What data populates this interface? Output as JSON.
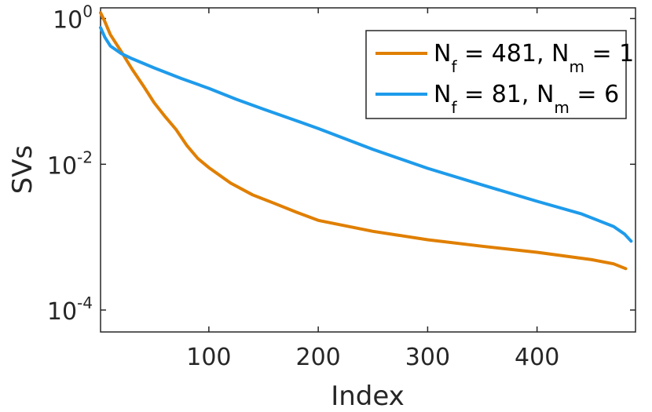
{
  "chart_data": {
    "type": "line",
    "xlabel": "Index",
    "ylabel": "SVs",
    "xlim": [
      1,
      490
    ],
    "ylim": [
      5e-05,
      1.4
    ],
    "y_scale": "log",
    "x_ticks": [
      100,
      200,
      300,
      400
    ],
    "x_tick_labels": [
      "100",
      "200",
      "300",
      "400"
    ],
    "y_ticks": [
      0.0001,
      0.01,
      1
    ],
    "y_tick_labels": [
      {
        "base": "10",
        "exp": "-4"
      },
      {
        "base": "10",
        "exp": "-2"
      },
      {
        "base": "10",
        "exp": "0"
      }
    ],
    "grid": false,
    "legend_position": "top-right",
    "series": [
      {
        "color": "#E07F00",
        "legend": {
          "parts": [
            {
              "t": "N"
            },
            {
              "t": "f",
              "sub": true
            },
            {
              "t": " = 481, N"
            },
            {
              "t": "m",
              "sub": true
            },
            {
              "t": " = 1"
            }
          ]
        },
        "x": [
          1,
          5,
          10,
          20,
          30,
          40,
          50,
          60,
          70,
          80,
          90,
          100,
          120,
          140,
          160,
          180,
          200,
          250,
          300,
          350,
          400,
          450,
          470,
          481
        ],
        "y": [
          1.2,
          0.9,
          0.6,
          0.35,
          0.2,
          0.12,
          0.07,
          0.045,
          0.03,
          0.018,
          0.012,
          0.009,
          0.0055,
          0.0038,
          0.0029,
          0.0022,
          0.0017,
          0.0012,
          0.00092,
          0.00075,
          0.00062,
          0.00049,
          0.00043,
          0.00037
        ]
      },
      {
        "color": "#1E9BEB",
        "legend": {
          "parts": [
            {
              "t": "N"
            },
            {
              "t": "f",
              "sub": true
            },
            {
              "t": " = 81, N"
            },
            {
              "t": "m",
              "sub": true
            },
            {
              "t": " = 6"
            }
          ]
        },
        "x": [
          1,
          5,
          10,
          20,
          30,
          50,
          75,
          100,
          125,
          150,
          175,
          200,
          250,
          300,
          350,
          400,
          440,
          470,
          480,
          486
        ],
        "y": [
          0.75,
          0.55,
          0.42,
          0.33,
          0.28,
          0.21,
          0.15,
          0.11,
          0.078,
          0.057,
          0.042,
          0.031,
          0.016,
          0.0088,
          0.0052,
          0.0031,
          0.0021,
          0.0014,
          0.0011,
          0.00088
        ]
      }
    ]
  }
}
